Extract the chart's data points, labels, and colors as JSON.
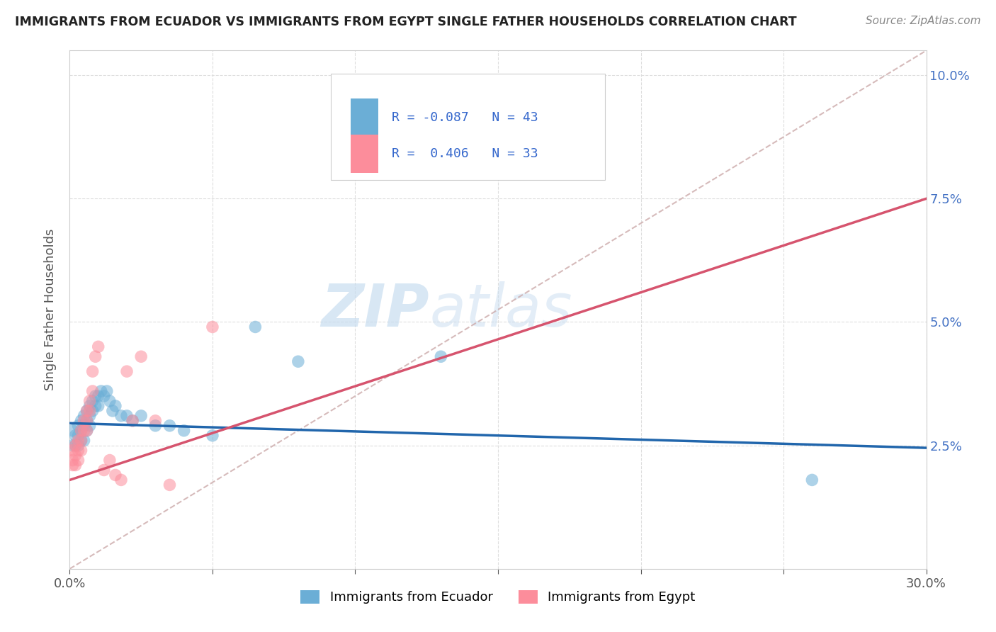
{
  "title": "IMMIGRANTS FROM ECUADOR VS IMMIGRANTS FROM EGYPT SINGLE FATHER HOUSEHOLDS CORRELATION CHART",
  "source": "Source: ZipAtlas.com",
  "ylabel": "Single Father Households",
  "x_min": 0.0,
  "x_max": 0.3,
  "y_min": 0.0,
  "y_max": 0.105,
  "color_ecuador": "#6baed6",
  "color_egypt": "#fc8d9b",
  "color_line_ecuador": "#2166ac",
  "color_line_egypt": "#d6546e",
  "color_line_dashed": "#ccaaaa",
  "watermark_zip": "ZIP",
  "watermark_atlas": "atlas",
  "ecuador_line_x0": 0.0,
  "ecuador_line_y0": 0.0295,
  "ecuador_line_x1": 0.3,
  "ecuador_line_y1": 0.0245,
  "egypt_line_x0": 0.0,
  "egypt_line_y0": 0.018,
  "egypt_line_x1": 0.3,
  "egypt_line_y1": 0.075,
  "dashed_line_x0": 0.0,
  "dashed_line_y0": 0.0,
  "dashed_line_x1": 0.3,
  "dashed_line_y1": 0.105,
  "ecuador_points": [
    [
      0.001,
      0.028
    ],
    [
      0.001,
      0.025
    ],
    [
      0.002,
      0.027
    ],
    [
      0.002,
      0.025
    ],
    [
      0.003,
      0.029
    ],
    [
      0.003,
      0.027
    ],
    [
      0.003,
      0.025
    ],
    [
      0.004,
      0.03
    ],
    [
      0.004,
      0.028
    ],
    [
      0.004,
      0.026
    ],
    [
      0.005,
      0.031
    ],
    [
      0.005,
      0.029
    ],
    [
      0.005,
      0.026
    ],
    [
      0.006,
      0.032
    ],
    [
      0.006,
      0.03
    ],
    [
      0.006,
      0.028
    ],
    [
      0.007,
      0.033
    ],
    [
      0.007,
      0.031
    ],
    [
      0.007,
      0.029
    ],
    [
      0.008,
      0.034
    ],
    [
      0.008,
      0.032
    ],
    [
      0.009,
      0.035
    ],
    [
      0.009,
      0.033
    ],
    [
      0.01,
      0.035
    ],
    [
      0.01,
      0.033
    ],
    [
      0.011,
      0.036
    ],
    [
      0.012,
      0.035
    ],
    [
      0.013,
      0.036
    ],
    [
      0.014,
      0.034
    ],
    [
      0.015,
      0.032
    ],
    [
      0.016,
      0.033
    ],
    [
      0.018,
      0.031
    ],
    [
      0.02,
      0.031
    ],
    [
      0.022,
      0.03
    ],
    [
      0.025,
      0.031
    ],
    [
      0.03,
      0.029
    ],
    [
      0.035,
      0.029
    ],
    [
      0.04,
      0.028
    ],
    [
      0.05,
      0.027
    ],
    [
      0.065,
      0.049
    ],
    [
      0.08,
      0.042
    ],
    [
      0.13,
      0.043
    ],
    [
      0.26,
      0.018
    ]
  ],
  "egypt_points": [
    [
      0.001,
      0.024
    ],
    [
      0.001,
      0.022
    ],
    [
      0.001,
      0.021
    ],
    [
      0.002,
      0.025
    ],
    [
      0.002,
      0.023
    ],
    [
      0.002,
      0.021
    ],
    [
      0.003,
      0.026
    ],
    [
      0.003,
      0.024
    ],
    [
      0.003,
      0.022
    ],
    [
      0.004,
      0.028
    ],
    [
      0.004,
      0.026
    ],
    [
      0.004,
      0.024
    ],
    [
      0.005,
      0.03
    ],
    [
      0.005,
      0.028
    ],
    [
      0.006,
      0.032
    ],
    [
      0.006,
      0.03
    ],
    [
      0.006,
      0.028
    ],
    [
      0.007,
      0.034
    ],
    [
      0.007,
      0.032
    ],
    [
      0.008,
      0.04
    ],
    [
      0.008,
      0.036
    ],
    [
      0.009,
      0.043
    ],
    [
      0.01,
      0.045
    ],
    [
      0.012,
      0.02
    ],
    [
      0.014,
      0.022
    ],
    [
      0.016,
      0.019
    ],
    [
      0.018,
      0.018
    ],
    [
      0.02,
      0.04
    ],
    [
      0.022,
      0.03
    ],
    [
      0.025,
      0.043
    ],
    [
      0.03,
      0.03
    ],
    [
      0.035,
      0.017
    ],
    [
      0.05,
      0.049
    ]
  ]
}
